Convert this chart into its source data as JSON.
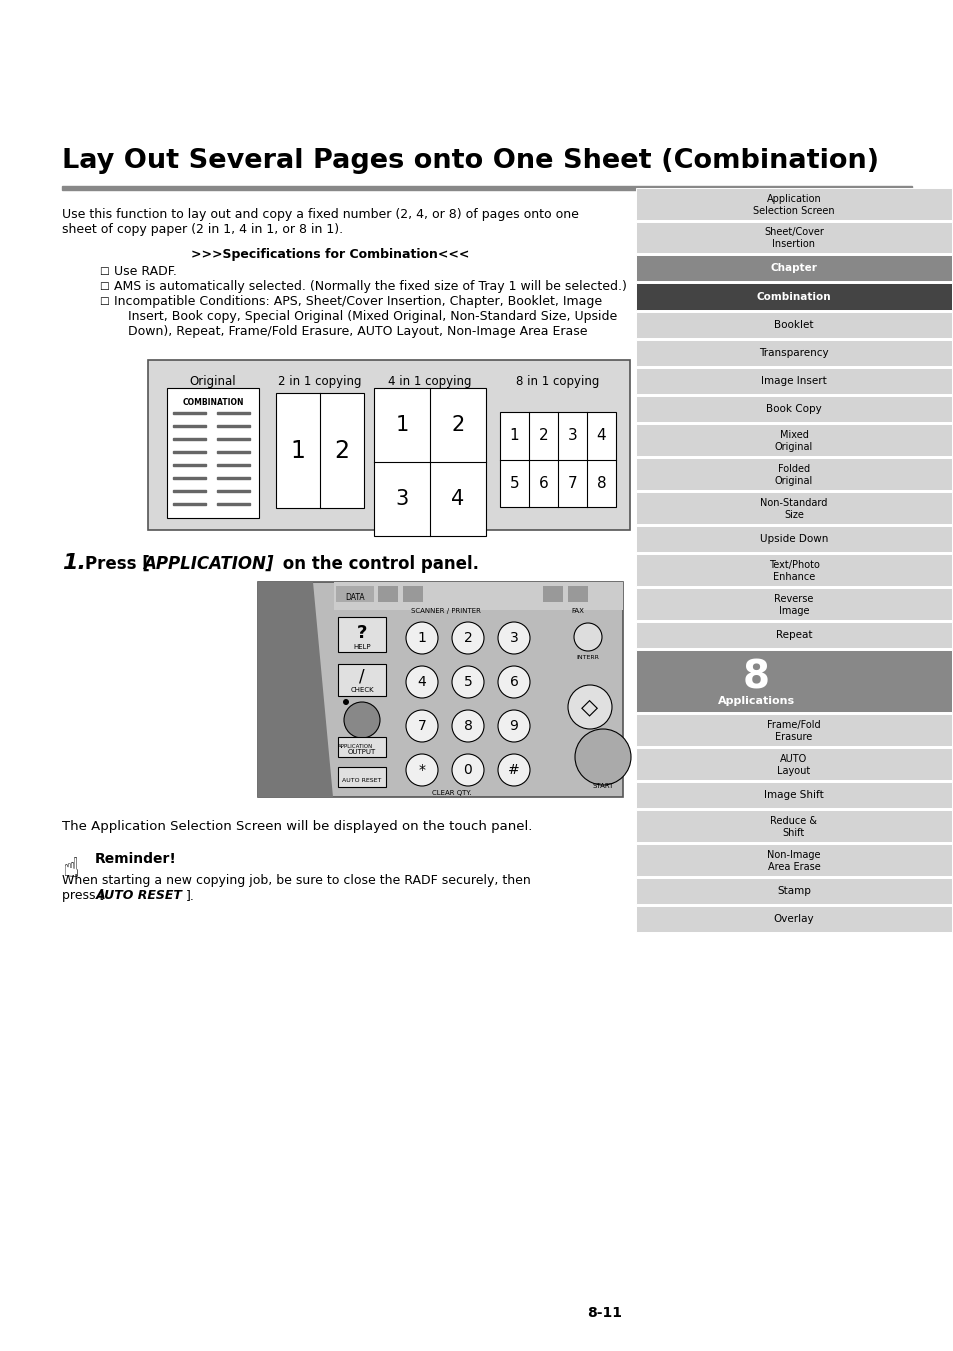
{
  "title": "Lay Out Several Pages onto One Sheet (Combination)",
  "bg_color": "#ffffff",
  "page_number": "8-11",
  "sidebar_items": [
    {
      "text": "Application\nSelection Screen",
      "style": "normal"
    },
    {
      "text": "Sheet/Cover\nInsertion",
      "style": "normal"
    },
    {
      "text": "Chapter",
      "style": "dark"
    },
    {
      "text": "Combination",
      "style": "darkest"
    },
    {
      "text": "Booklet",
      "style": "normal"
    },
    {
      "text": "Transparency",
      "style": "normal"
    },
    {
      "text": "Image Insert",
      "style": "normal"
    },
    {
      "text": "Book Copy",
      "style": "normal"
    },
    {
      "text": "Mixed\nOriginal",
      "style": "normal"
    },
    {
      "text": "Folded\nOriginal",
      "style": "normal"
    },
    {
      "text": "Non-Standard\nSize",
      "style": "normal"
    },
    {
      "text": "Upside Down",
      "style": "normal"
    },
    {
      "text": "Text/Photo\nEnhance",
      "style": "normal"
    },
    {
      "text": "Reverse\nImage",
      "style": "normal"
    },
    {
      "text": "Repeat",
      "style": "normal"
    },
    {
      "text": "8\nApplications",
      "style": "applications"
    },
    {
      "text": "Frame/Fold\nErasure",
      "style": "normal"
    },
    {
      "text": "AUTO\nLayout",
      "style": "normal"
    },
    {
      "text": "Image Shift",
      "style": "normal"
    },
    {
      "text": "Reduce &\nShift",
      "style": "normal"
    },
    {
      "text": "Non-Image\nArea Erase",
      "style": "normal"
    },
    {
      "text": "Stamp",
      "style": "normal"
    },
    {
      "text": "Overlay",
      "style": "normal"
    }
  ]
}
